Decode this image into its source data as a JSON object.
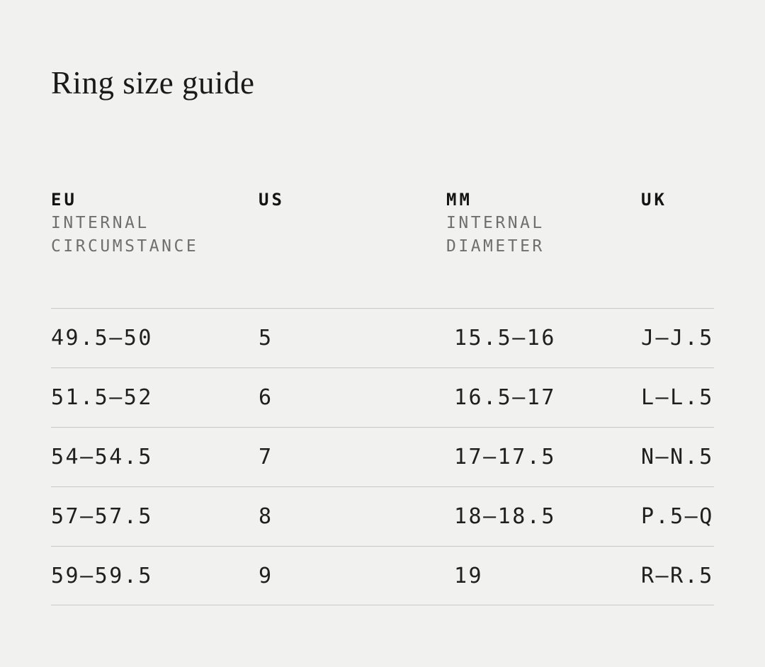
{
  "page": {
    "title": "Ring size guide",
    "background_color": "#f1f1ef",
    "text_color": "#1f1f1f",
    "secondary_text_color": "#6f6f6f",
    "rule_color": "#c8c8c6"
  },
  "table": {
    "columns": [
      {
        "key": "eu",
        "label": "EU",
        "sublines": [
          "INTERNAL",
          "CIRCUMSTANCE"
        ]
      },
      {
        "key": "us",
        "label": "US",
        "sublines": []
      },
      {
        "key": "mm",
        "label": "MM",
        "sublines": [
          "INTERNAL",
          "DIAMETER"
        ]
      },
      {
        "key": "uk",
        "label": "UK",
        "sublines": []
      }
    ],
    "rows": [
      {
        "eu": "49.5—50",
        "us": "5",
        "mm": "15.5—16",
        "uk": "J—J.5"
      },
      {
        "eu": "51.5—52",
        "us": "6",
        "mm": "16.5—17",
        "uk": "L—L.5"
      },
      {
        "eu": "54—54.5",
        "us": "7",
        "mm": "17—17.5",
        "uk": "N—N.5"
      },
      {
        "eu": "57—57.5",
        "us": "8",
        "mm": "18—18.5",
        "uk": "P.5—Q"
      },
      {
        "eu": "59—59.5",
        "us": "9",
        "mm": "19",
        "uk": "R—R.5"
      }
    ]
  }
}
